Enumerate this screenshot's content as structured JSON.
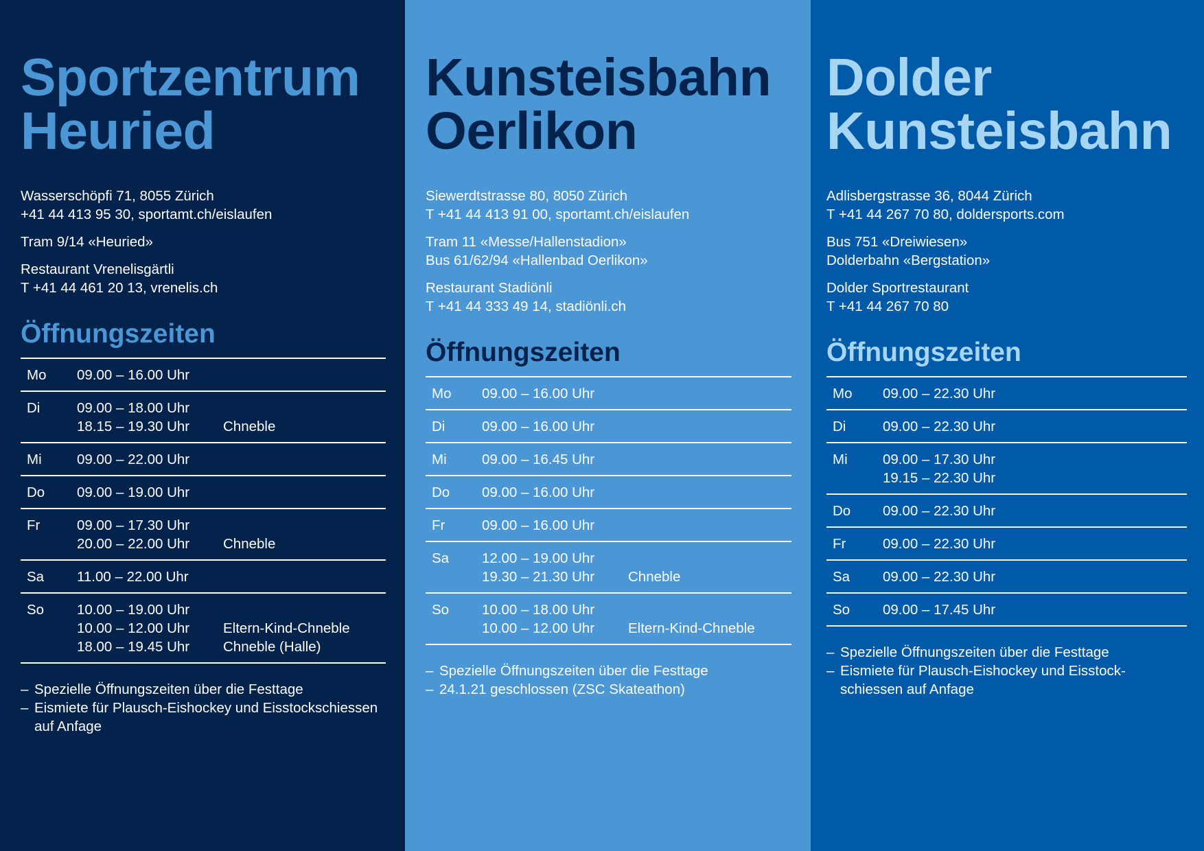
{
  "panels": [
    {
      "title_lines": [
        "Sportzentrum",
        "Heuried"
      ],
      "info_blocks": [
        [
          "Wasserschöpfi 71, 8055 Zürich",
          "+41 44 413 95 30, sportamt.ch/eislaufen"
        ],
        [
          "Tram 9/14 «Heuried»"
        ],
        [
          "Restaurant Vrenelisgärtli",
          "T +41 44 461 20 13, vrenelis.ch"
        ]
      ],
      "hours_title": "Öffnungszeiten",
      "hours": [
        {
          "day": "Mo",
          "slots": [
            {
              "time": "09.00 – 16.00 Uhr",
              "note": ""
            }
          ]
        },
        {
          "day": "Di",
          "slots": [
            {
              "time": "09.00 – 18.00 Uhr",
              "note": ""
            },
            {
              "time": "18.15 – 19.30 Uhr",
              "note": "Chneble"
            }
          ]
        },
        {
          "day": "Mi",
          "slots": [
            {
              "time": "09.00 – 22.00 Uhr",
              "note": ""
            }
          ]
        },
        {
          "day": "Do",
          "slots": [
            {
              "time": "09.00 – 19.00 Uhr",
              "note": ""
            }
          ]
        },
        {
          "day": "Fr",
          "slots": [
            {
              "time": "09.00 – 17.30 Uhr",
              "note": ""
            },
            {
              "time": "20.00 – 22.00 Uhr",
              "note": "Chneble"
            }
          ]
        },
        {
          "day": "Sa",
          "slots": [
            {
              "time": "11.00 – 22.00 Uhr",
              "note": ""
            }
          ]
        },
        {
          "day": "So",
          "slots": [
            {
              "time": "10.00 – 19.00 Uhr",
              "note": ""
            },
            {
              "time": "10.00 – 12.00 Uhr",
              "note": "Eltern-Kind-Chneble"
            },
            {
              "time": "18.00 – 19.45 Uhr",
              "note": "Chneble (Halle)"
            }
          ]
        }
      ],
      "notes": [
        "Spezielle Öffnungszeiten über die Festtage",
        "Eismiete für Plausch-Eishockey und Eisstockschiessen auf Anfage"
      ]
    },
    {
      "title_lines": [
        "Kunsteisbahn",
        "Oerlikon"
      ],
      "info_blocks": [
        [
          "Siewerdtstrasse 80, 8050 Zürich",
          "T +41 44 413 91 00, sportamt.ch/eislaufen"
        ],
        [
          "Tram 11 «Messe/Hallenstadion»",
          "Bus 61/62/94 «Hallenbad Oerlikon»"
        ],
        [
          "Restaurant Stadiönli",
          "T +41 44 333 49 14, stadiönli.ch"
        ]
      ],
      "hours_title": "Öffnungszeiten",
      "hours": [
        {
          "day": "Mo",
          "slots": [
            {
              "time": "09.00 – 16.00 Uhr",
              "note": ""
            }
          ]
        },
        {
          "day": "Di",
          "slots": [
            {
              "time": "09.00 – 16.00 Uhr",
              "note": ""
            }
          ]
        },
        {
          "day": "Mi",
          "slots": [
            {
              "time": "09.00 – 16.45 Uhr",
              "note": ""
            }
          ]
        },
        {
          "day": "Do",
          "slots": [
            {
              "time": "09.00 – 16.00 Uhr",
              "note": ""
            }
          ]
        },
        {
          "day": "Fr",
          "slots": [
            {
              "time": "09.00 – 16.00 Uhr",
              "note": ""
            }
          ]
        },
        {
          "day": "Sa",
          "slots": [
            {
              "time": "12.00 – 19.00 Uhr",
              "note": ""
            },
            {
              "time": "19.30 – 21.30 Uhr",
              "note": "Chneble"
            }
          ]
        },
        {
          "day": "So",
          "slots": [
            {
              "time": "10.00 – 18.00 Uhr",
              "note": ""
            },
            {
              "time": "10.00 – 12.00 Uhr",
              "note": "Eltern-Kind-Chneble"
            }
          ]
        }
      ],
      "notes": [
        "Spezielle Öffnungszeiten über die Festtage",
        "24.1.21 geschlossen (ZSC Skateathon)"
      ]
    },
    {
      "title_lines": [
        "Dolder",
        "Kunsteisbahn"
      ],
      "info_blocks": [
        [
          "Adlisbergstrasse 36, 8044 Zürich",
          "T +41 44 267 70 80, doldersports.com"
        ],
        [
          "Bus 751 «Dreiwiesen»",
          "Dolderbahn «Bergstation»"
        ],
        [
          "Dolder Sportrestaurant",
          "T +41 44 267 70 80"
        ]
      ],
      "hours_title": "Öffnungszeiten",
      "hours": [
        {
          "day": "Mo",
          "slots": [
            {
              "time": "09.00 – 22.30 Uhr",
              "note": ""
            }
          ]
        },
        {
          "day": "Di",
          "slots": [
            {
              "time": "09.00 – 22.30 Uhr",
              "note": ""
            }
          ]
        },
        {
          "day": "Mi",
          "slots": [
            {
              "time": "09.00 – 17.30 Uhr",
              "note": ""
            },
            {
              "time": "19.15 – 22.30 Uhr",
              "note": ""
            }
          ]
        },
        {
          "day": "Do",
          "slots": [
            {
              "time": "09.00 – 22.30 Uhr",
              "note": ""
            }
          ]
        },
        {
          "day": "Fr",
          "slots": [
            {
              "time": "09.00 – 22.30 Uhr",
              "note": ""
            }
          ]
        },
        {
          "day": "Sa",
          "slots": [
            {
              "time": "09.00 – 22.30 Uhr",
              "note": ""
            }
          ]
        },
        {
          "day": "So",
          "slots": [
            {
              "time": "09.00 – 17.45 Uhr",
              "note": ""
            }
          ]
        }
      ],
      "notes": [
        "Spezielle Öffnungszeiten über die Festtage",
        "Eismiete für Plausch-Eishockey und Eisstock-schiessen auf Anfage"
      ]
    }
  ],
  "note_dash": "–"
}
